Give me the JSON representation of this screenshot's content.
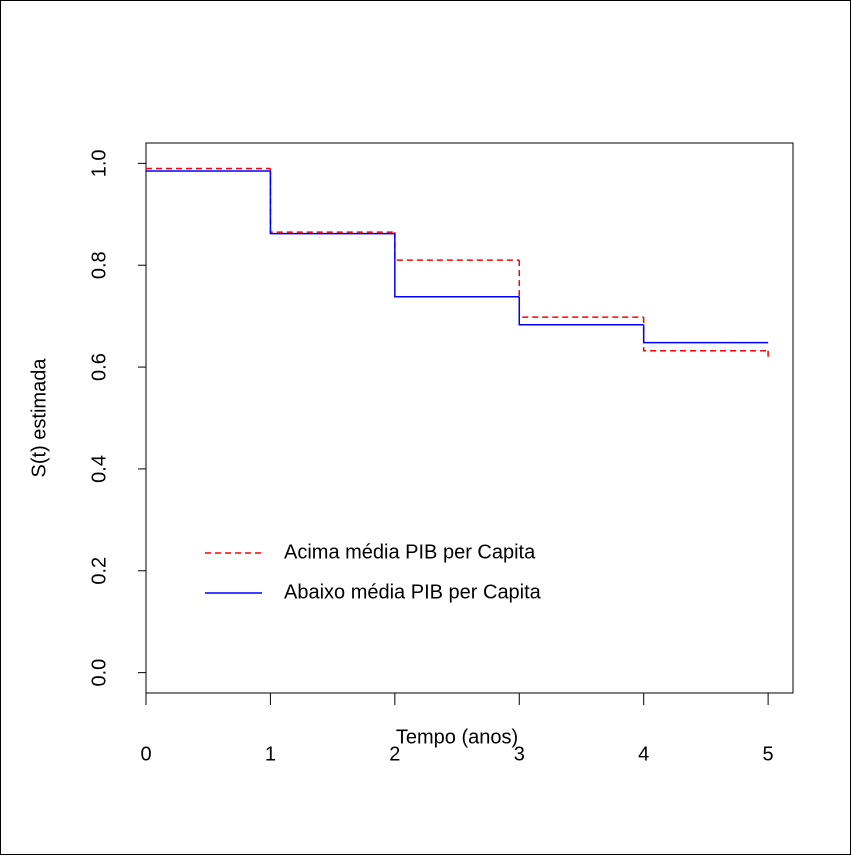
{
  "chart_data": {
    "type": "step",
    "x_label": "Tempo (anos)",
    "y_label": "S(t) estimada",
    "x": [
      0,
      1,
      2,
      3,
      4,
      5
    ],
    "series": [
      {
        "name": "Acima média PIB per Capita",
        "color": "#ff0000",
        "dash": true,
        "values": [
          0.99,
          0.865,
          0.81,
          0.698,
          0.632,
          0.616
        ]
      },
      {
        "name": "Abaixo média PIB per Capita",
        "color": "#0000ff",
        "dash": false,
        "values": [
          0.985,
          0.862,
          0.738,
          0.683,
          0.648,
          0.648
        ]
      }
    ],
    "xlim": [
      0,
      5.2
    ],
    "xticks": [
      0,
      1,
      2,
      3,
      4,
      5
    ],
    "ylim": [
      -0.04,
      1.04
    ],
    "yticks": [
      {
        "value": 0,
        "label": "0.0"
      },
      {
        "value": 0.2,
        "label": "0.2"
      },
      {
        "value": 0.4,
        "label": "0.4"
      },
      {
        "value": 0.6,
        "label": "0.6"
      },
      {
        "value": 0.8,
        "label": "0.8"
      },
      {
        "value": 1,
        "label": "1.0"
      }
    ]
  }
}
